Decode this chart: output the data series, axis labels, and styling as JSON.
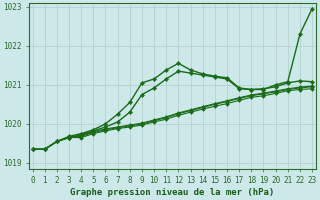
{
  "title": "Graphe pression niveau de la mer (hPa)",
  "hours": [
    0,
    1,
    2,
    3,
    4,
    5,
    6,
    7,
    8,
    9,
    10,
    11,
    12,
    13,
    14,
    15,
    16,
    17,
    18,
    19,
    20,
    21,
    22,
    23
  ],
  "series": [
    {
      "name": "line_bottom1",
      "y": [
        1019.35,
        1019.35,
        1019.55,
        1019.65,
        1019.65,
        1019.75,
        1019.82,
        1019.88,
        1019.92,
        1019.97,
        1020.05,
        1020.12,
        1020.22,
        1020.3,
        1020.38,
        1020.45,
        1020.52,
        1020.6,
        1020.68,
        1020.72,
        1020.78,
        1020.85,
        1020.88,
        1020.9
      ],
      "color": "#1a6b1a",
      "marker": "D",
      "markersize": 2.0,
      "linewidth": 0.8
    },
    {
      "name": "line_bottom2",
      "y": [
        1019.35,
        1019.35,
        1019.55,
        1019.65,
        1019.68,
        1019.78,
        1019.85,
        1019.9,
        1019.95,
        1020.0,
        1020.08,
        1020.16,
        1020.26,
        1020.34,
        1020.42,
        1020.5,
        1020.57,
        1020.65,
        1020.72,
        1020.77,
        1020.82,
        1020.88,
        1020.92,
        1020.95
      ],
      "color": "#1a6b1a",
      "marker": "D",
      "markersize": 2.0,
      "linewidth": 0.8
    },
    {
      "name": "line_bottom3",
      "y": [
        1019.35,
        1019.35,
        1019.55,
        1019.65,
        1019.7,
        1019.8,
        1019.87,
        1019.92,
        1019.97,
        1020.02,
        1020.1,
        1020.18,
        1020.28,
        1020.36,
        1020.44,
        1020.52,
        1020.59,
        1020.67,
        1020.74,
        1020.79,
        1020.84,
        1020.9,
        1020.94,
        1020.97
      ],
      "color": "#1a6b1a",
      "marker": "D",
      "markersize": 2.0,
      "linewidth": 0.8
    },
    {
      "name": "line_mid_peak",
      "y": [
        1019.35,
        1019.35,
        1019.55,
        1019.65,
        1019.72,
        1019.82,
        1019.92,
        1020.05,
        1020.3,
        1020.75,
        1020.92,
        1021.15,
        1021.35,
        1021.3,
        1021.25,
        1021.2,
        1021.15,
        1020.9,
        1020.88,
        1020.9,
        1020.95,
        1021.05,
        1021.1,
        1021.08
      ],
      "color": "#1a6b1a",
      "marker": "D",
      "markersize": 2.2,
      "linewidth": 1.0
    },
    {
      "name": "line_upper_peak",
      "y": [
        1019.35,
        1019.35,
        1019.55,
        1019.68,
        1019.75,
        1019.85,
        1020.0,
        1020.25,
        1020.55,
        1021.05,
        1021.15,
        1021.38,
        1021.55,
        1021.38,
        1021.28,
        1021.22,
        1021.18,
        1020.92,
        1020.88,
        1020.88,
        1021.0,
        1021.08,
        1022.3,
        1022.95
      ],
      "color": "#1a6b1a",
      "marker": "D",
      "markersize": 2.2,
      "linewidth": 1.0
    }
  ],
  "ylim": [
    1018.85,
    1023.1
  ],
  "yticks": [
    1019,
    1020,
    1021,
    1022,
    1023
  ],
  "xlim": [
    -0.3,
    23.3
  ],
  "bg_color": "#cce8e8",
  "grid_color": "#b0cccc",
  "axis_color": "#2d6a2d",
  "text_color": "#1a5c1a",
  "tick_fontsize": 5.5,
  "title_fontsize": 6.5
}
